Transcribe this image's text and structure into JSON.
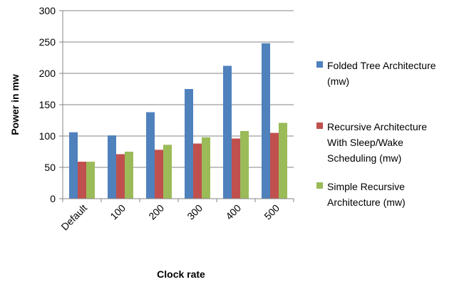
{
  "chart_data": {
    "type": "bar",
    "title": "",
    "xlabel": "Clock rate",
    "ylabel": "Power in mw",
    "categories": [
      "Default",
      "100",
      "200",
      "300",
      "400",
      "500"
    ],
    "ylim": [
      0,
      300
    ],
    "yticks": [
      0,
      50,
      100,
      150,
      200,
      250,
      300
    ],
    "grid": true,
    "legend_position": "right",
    "series": [
      {
        "name": "Folded Tree Architecture (mw)",
        "legend_lines": [
          "Folded Tree Architecture",
          "(mw)"
        ],
        "color": "#4F81BD",
        "values": [
          106,
          101,
          138,
          175,
          212,
          248
        ]
      },
      {
        "name": "Recursive Architecture With Sleep/Wake Scheduling (mw)",
        "legend_lines": [
          "Recursive Architecture",
          "With Sleep/Wake",
          "Scheduling (mw)"
        ],
        "color": "#C0504D",
        "values": [
          59,
          71,
          78,
          88,
          96,
          105
        ]
      },
      {
        "name": "Simple Recursive Architecture (mw)",
        "legend_lines": [
          "Simple Recursive",
          "Architecture (mw)"
        ],
        "color": "#9BBB59",
        "values": [
          59,
          75,
          86,
          98,
          108,
          121
        ]
      }
    ]
  }
}
